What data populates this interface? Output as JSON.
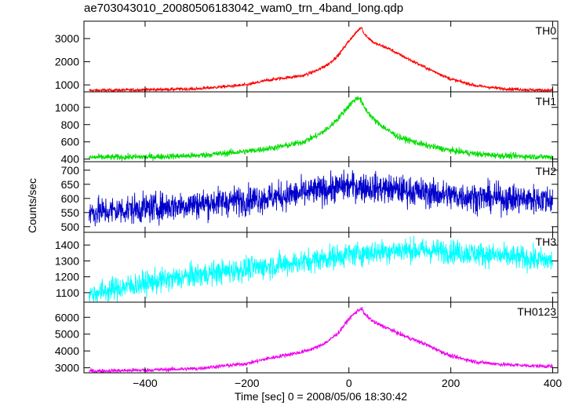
{
  "chart_data": {
    "type": "line",
    "title": "ae703043010_20080506183042_wam0_trn_4band_long.qdp",
    "xlabel": "Time [sec] 0 = 2008/05/06 18:30:42",
    "ylabel": "Counts/sec",
    "xlim": [
      -520,
      410
    ],
    "x_ticks": [
      -400,
      -200,
      0,
      200,
      400
    ],
    "panels": [
      {
        "name": "TH0",
        "color": "#ff0000",
        "ylim": [
          700,
          3750
        ],
        "y_ticks": [
          1000,
          2000,
          3000
        ],
        "noise": 35,
        "x": [
          -510,
          -400,
          -300,
          -200,
          -160,
          -120,
          -90,
          -60,
          -40,
          -20,
          0,
          10,
          20,
          25,
          30,
          50,
          80,
          100,
          150,
          200,
          250,
          300,
          350,
          400
        ],
        "y": [
          760,
          790,
          830,
          1000,
          1200,
          1320,
          1400,
          1650,
          1900,
          2300,
          2900,
          3150,
          3400,
          3500,
          3200,
          2800,
          2550,
          2300,
          1750,
          1250,
          960,
          840,
          790,
          760
        ]
      },
      {
        "name": "TH1",
        "color": "#00dd00",
        "ylim": [
          370,
          1180
        ],
        "y_ticks": [
          400,
          600,
          800,
          1000
        ],
        "noise": 18,
        "x": [
          -510,
          -400,
          -300,
          -200,
          -150,
          -120,
          -90,
          -60,
          -40,
          -20,
          0,
          10,
          20,
          30,
          50,
          80,
          100,
          150,
          200,
          250,
          300,
          350,
          400
        ],
        "y": [
          420,
          425,
          440,
          490,
          530,
          560,
          600,
          680,
          760,
          880,
          1020,
          1080,
          1120,
          1000,
          850,
          720,
          650,
          560,
          500,
          460,
          440,
          430,
          425
        ]
      },
      {
        "name": "TH2",
        "color": "#0000cc",
        "ylim": [
          480,
          730
        ],
        "y_ticks": [
          500,
          550,
          600,
          650,
          700
        ],
        "noise": 26,
        "x": [
          -510,
          -400,
          -300,
          -200,
          -100,
          0,
          100,
          200,
          300,
          400
        ],
        "y": [
          550,
          565,
          580,
          595,
          615,
          645,
          630,
          610,
          600,
          595
        ]
      },
      {
        "name": "TH3",
        "color": "#00ffff",
        "ylim": [
          1040,
          1480
        ],
        "y_ticks": [
          1100,
          1200,
          1300,
          1400
        ],
        "noise": 38,
        "x": [
          -510,
          -450,
          -400,
          -300,
          -200,
          -100,
          0,
          100,
          200,
          300,
          400
        ],
        "y": [
          1090,
          1130,
          1160,
          1210,
          1250,
          1290,
          1340,
          1370,
          1360,
          1330,
          1300
        ]
      },
      {
        "name": "TH0123",
        "color": "#ee00ee",
        "ylim": [
          2700,
          6900
        ],
        "y_ticks": [
          3000,
          4000,
          5000,
          6000
        ],
        "noise": 60,
        "x": [
          -510,
          -400,
          -300,
          -200,
          -160,
          -120,
          -90,
          -60,
          -40,
          -20,
          0,
          10,
          20,
          25,
          30,
          50,
          80,
          100,
          150,
          200,
          250,
          300,
          350,
          400
        ],
        "y": [
          2800,
          2860,
          2950,
          3250,
          3550,
          3780,
          3950,
          4250,
          4600,
          5100,
          5900,
          6200,
          6450,
          6550,
          6200,
          5700,
          5300,
          5000,
          4400,
          3700,
          3350,
          3200,
          3130,
          3080
        ]
      }
    ]
  }
}
